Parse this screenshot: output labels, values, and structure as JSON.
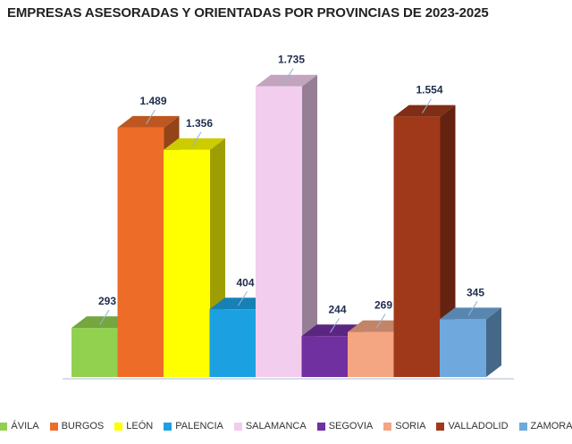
{
  "chart_data": {
    "type": "bar",
    "title": "EMPRESAS ASESORADAS Y ORIENTADAS POR PROVINCIAS DE 2023-2025",
    "categories": [
      "ÁVILA",
      "BURGOS",
      "LEÓN",
      "PALENCIA",
      "SALAMANCA",
      "SEGOVIA",
      "SORIA",
      "VALLADOLID",
      "ZAMORA"
    ],
    "series": [
      {
        "values": [
          293,
          1489,
          1356,
          404,
          1735,
          244,
          269,
          1554,
          345
        ]
      }
    ],
    "value_labels": [
      "293",
      "1.489",
      "1.356",
      "404",
      "1.735",
      "244",
      "269",
      "1.554",
      "345"
    ],
    "colors": [
      "#92d050",
      "#ed6d28",
      "#ffff00",
      "#1ba1e2",
      "#f2cdee",
      "#7030a0",
      "#f4a582",
      "#a0391a",
      "#6fa8dc"
    ],
    "ylim": [
      0,
      1800
    ],
    "grid": false,
    "legend": "bottom"
  }
}
